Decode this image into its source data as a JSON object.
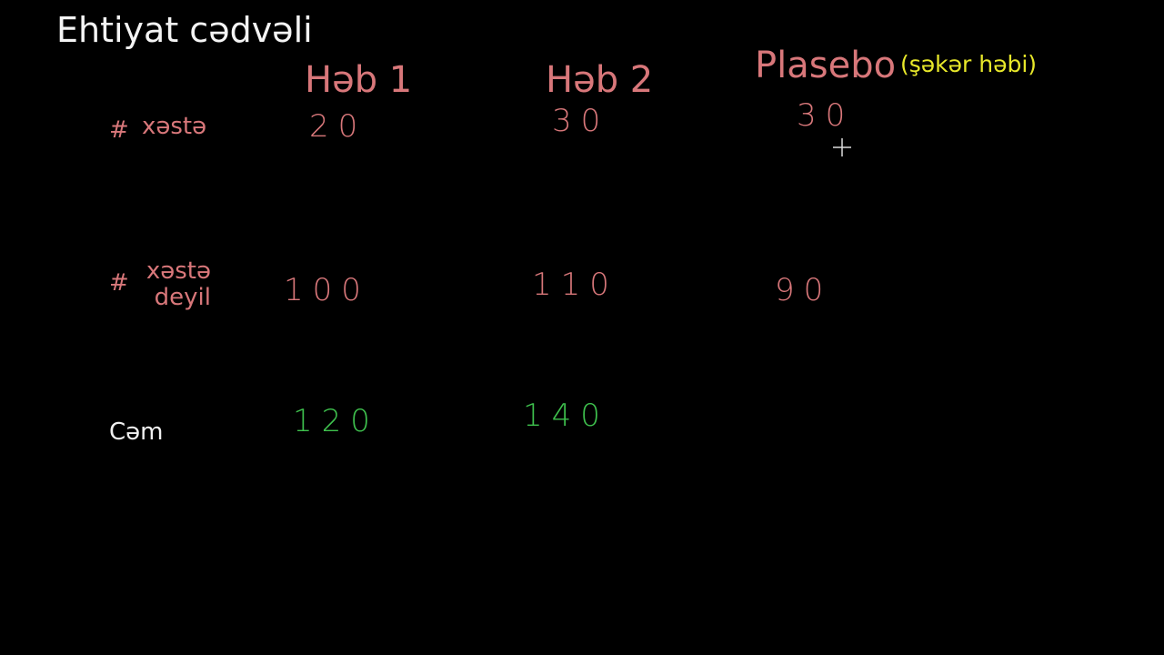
{
  "title": "Ehtiyat cədvəli",
  "table": {
    "columns": [
      "Həb 1",
      "Həb 2",
      "Plasebo"
    ],
    "column_note": "(şəkər həbi)",
    "rows": [
      {
        "marker": "#",
        "label": "xəstə",
        "values": [
          20,
          30,
          30
        ]
      },
      {
        "marker": "#",
        "label": "xəstə deyil",
        "values": [
          100,
          110,
          90
        ]
      },
      {
        "label": "Cəm",
        "values": [
          120,
          140
        ]
      }
    ]
  }
}
